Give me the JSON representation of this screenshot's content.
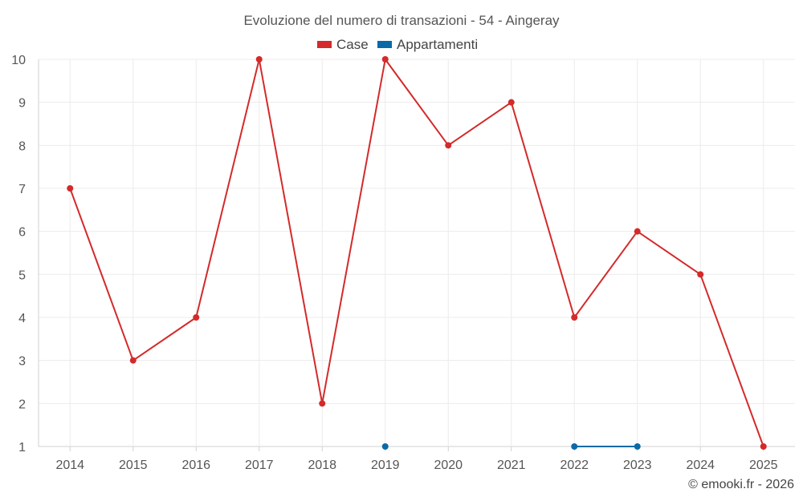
{
  "chart_data": {
    "type": "line",
    "title": "Evoluzione del numero di transazioni - 54 - Aingeray",
    "xlabel": "",
    "ylabel": "",
    "x": [
      2014,
      2015,
      2016,
      2017,
      2018,
      2019,
      2020,
      2021,
      2022,
      2023,
      2024,
      2025
    ],
    "ylim": [
      1,
      10
    ],
    "yticks": [
      1,
      2,
      3,
      4,
      5,
      6,
      7,
      8,
      9,
      10
    ],
    "grid": true,
    "legend_position": "top-center",
    "series": [
      {
        "name": "Case",
        "color": "#d42a2a",
        "values": [
          7,
          3,
          4,
          10,
          2,
          10,
          8,
          9,
          4,
          6,
          5,
          1
        ]
      },
      {
        "name": "Appartamenti",
        "color": "#0a6aa8",
        "values": [
          null,
          null,
          null,
          null,
          null,
          1,
          null,
          null,
          1,
          1,
          null,
          null
        ]
      }
    ]
  },
  "credit": "© emooki.fr - 2026"
}
